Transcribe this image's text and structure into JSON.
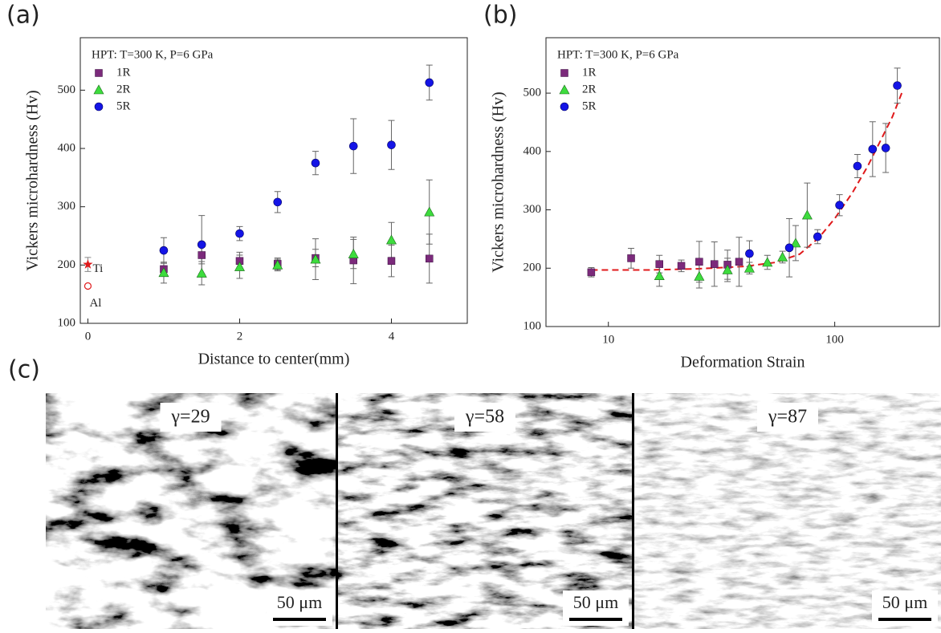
{
  "chart_data": [
    {
      "type": "scatter",
      "panel_label": "(a)",
      "legend_title": "HPT: T=300 K, P=6 GPa",
      "xlabel": "Distance to center(mm)",
      "ylabel": "Vickers microhardness (Hv)",
      "xlim": [
        -0.1,
        5
      ],
      "ylim": [
        100,
        590
      ],
      "xticks": [
        0,
        2,
        4
      ],
      "yticks": [
        100,
        200,
        300,
        400,
        500
      ],
      "series": [
        {
          "name": "1R",
          "color": "#7b2a7b",
          "marker": "square",
          "x": [
            1,
            1.5,
            2,
            2.5,
            3,
            3.5,
            4,
            4.5
          ],
          "values": [
            193,
            217,
            207,
            202,
            212,
            208,
            207,
            211
          ],
          "errors": [
            10,
            15,
            15,
            10,
            15,
            40,
            27,
            42
          ]
        },
        {
          "name": "2R",
          "color": "#3ddc3d",
          "marker": "triangle",
          "x": [
            1,
            1.5,
            2,
            2.5,
            3,
            3.5,
            4,
            4.5
          ],
          "values": [
            187,
            186,
            197,
            200,
            210,
            219,
            243,
            291
          ],
          "errors": [
            18,
            20,
            20,
            10,
            35,
            25,
            30,
            55
          ]
        },
        {
          "name": "5R",
          "color": "#1414e6",
          "marker": "circle",
          "x": [
            1,
            1.5,
            2,
            2.5,
            3,
            3.5,
            4,
            4.5
          ],
          "values": [
            225,
            235,
            254,
            308,
            375,
            404,
            406,
            513
          ],
          "errors": [
            22,
            50,
            12,
            18,
            20,
            47,
            42,
            30
          ]
        }
      ],
      "reference_points": [
        {
          "name": "Ti",
          "x": 0,
          "y": 201,
          "marker": "star",
          "color": "#e0191b",
          "error": 12
        },
        {
          "name": "Al",
          "x": 0,
          "y": 164,
          "marker": "open-circle",
          "color": "#e0191b"
        }
      ]
    },
    {
      "type": "scatter",
      "panel_label": "(b)",
      "legend_title": "HPT: T=300 K, P=6 GPa",
      "xlabel": "Deformation Strain",
      "ylabel": "Vickers microhardness (Hv)",
      "xscale": "log",
      "xlim": [
        5.3,
        290
      ],
      "ylim": [
        100,
        595
      ],
      "xticks": [
        10,
        100
      ],
      "yticks": [
        100,
        200,
        300,
        400,
        500
      ],
      "series": [
        {
          "name": "1R",
          "color": "#7b2a7b",
          "marker": "square",
          "x": [
            8.4,
            12.6,
            16.8,
            21,
            25.2,
            29.4,
            33.6,
            37.8
          ],
          "values": [
            193,
            217,
            207,
            204,
            211,
            207,
            206,
            211
          ],
          "errors": [
            8,
            17,
            15,
            10,
            35,
            38,
            25,
            42
          ]
        },
        {
          "name": "2R",
          "color": "#3ddc3d",
          "marker": "triangle",
          "x": [
            16.8,
            25.2,
            33.6,
            42,
            50.4,
            58.8,
            67.2,
            75.6
          ],
          "values": [
            187,
            186,
            197,
            200,
            210,
            219,
            243,
            291
          ],
          "errors": [
            18,
            20,
            20,
            10,
            12,
            10,
            30,
            55
          ]
        },
        {
          "name": "5R",
          "color": "#1414e6",
          "marker": "circle",
          "x": [
            42,
            63,
            84,
            105,
            126,
            147,
            168,
            189
          ],
          "values": [
            225,
            235,
            254,
            308,
            375,
            404,
            406,
            513
          ],
          "errors": [
            22,
            50,
            12,
            18,
            20,
            47,
            42,
            30
          ]
        }
      ],
      "fit": {
        "color": "#e0191b",
        "style": "dashed",
        "x": [
          8.4,
          15,
          25,
          40,
          55,
          70,
          85,
          100,
          120,
          140,
          160,
          180,
          200
        ],
        "values": [
          197,
          197,
          199,
          203,
          210,
          224,
          252,
          285,
          330,
          375,
          420,
          460,
          505
        ]
      }
    }
  ],
  "micrographs": {
    "panel_label": "(c)",
    "images": [
      {
        "label": "γ=29",
        "scale_bar": "50 μm"
      },
      {
        "label": "γ=58",
        "scale_bar": "50 μm"
      },
      {
        "label": "γ=87",
        "scale_bar": "50 μm"
      }
    ]
  }
}
